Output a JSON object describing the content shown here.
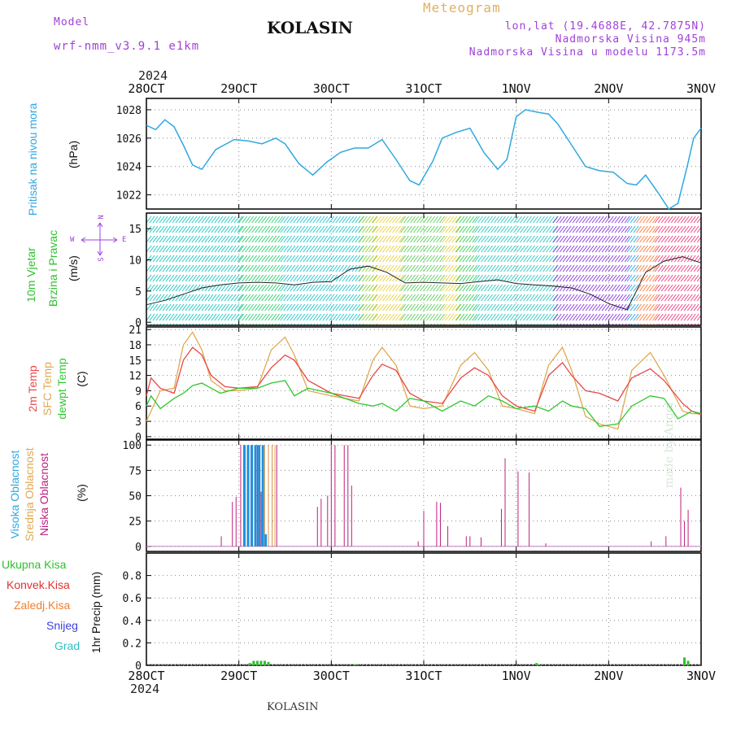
{
  "header": {
    "model_label": "Model",
    "model_value": "wrf-nmm_v3.9.1 e1km",
    "title": "KOLASIN",
    "meteogram_label": "Meteogram",
    "lonlat": "lon,lat (19.4688E, 42.7875N)",
    "elevation": "Nadmorska Visina 945m",
    "model_elevation": "Nadmorska Visina u modelu 1173.5m",
    "year_top": "2024",
    "year_bottom": "2024",
    "footer_station": "KOLASIN",
    "credit": "made by Angel"
  },
  "time_axis": {
    "days": [
      "28OCT",
      "29OCT",
      "30OCT",
      "31OCT",
      "1NOV",
      "2NOV",
      "3NOV"
    ]
  },
  "panels": {
    "pressure": {
      "ylabels": [
        "Pritisak na nivou mora",
        "(hPa)"
      ],
      "color": "#30a8e0"
    },
    "wind": {
      "ylabels": [
        "10m Vjetar",
        "Brzina i Pravac",
        "(m/s)"
      ],
      "compass": {
        "n": "N",
        "s": "S",
        "e": "E",
        "w": "W"
      }
    },
    "temp": {
      "ylabels": [
        "2m Temp",
        "SFC Temp",
        "dewpt Temp",
        "(C)"
      ],
      "colors": {
        "t2m": "#e84848",
        "sfc": "#e0a850",
        "dew": "#30c830"
      }
    },
    "cloud": {
      "ylabels": [
        "Visoka Oblacnost",
        "Srednja Oblacnost",
        "Niska Oblacnost",
        "(%)"
      ],
      "colors": {
        "high": "#2090e0",
        "mid": "#e0a850",
        "low": "#c02080"
      }
    },
    "precip": {
      "ylabel": "1hr Precip (mm)",
      "legend": [
        "Ukupna Kisa",
        "Konvek.Kisa",
        "Zaledj.Kisa",
        "Snijeg",
        "Grad"
      ],
      "legend_colors": [
        "#30c030",
        "#e03030",
        "#f08030",
        "#4040e0",
        "#30c0c0"
      ]
    }
  },
  "chart_data": [
    {
      "type": "line",
      "title": "",
      "ylabel": "Pritisak na nivou mora (hPa)",
      "ylim": [
        1021,
        1028.8
      ],
      "yticks": [
        1022,
        1024,
        1026,
        1028
      ],
      "x_unit": "days from 28OCT 00UTC",
      "grid": true,
      "series": [
        {
          "name": "",
          "x": [
            0,
            0.1,
            0.2,
            0.3,
            0.4,
            0.5,
            0.6,
            0.75,
            0.95,
            1.1,
            1.25,
            1.4,
            1.5,
            1.65,
            1.8,
            1.95,
            2.1,
            2.25,
            2.4,
            2.55,
            2.7,
            2.85,
            2.95,
            3.1,
            3.2,
            3.35,
            3.5,
            3.65,
            3.8,
            3.9,
            4.0,
            4.1,
            4.25,
            4.35,
            4.45,
            4.6,
            4.75,
            4.9,
            5.05,
            5.2,
            5.3,
            5.4,
            5.55,
            5.65,
            5.75,
            5.85,
            5.92,
            6.0
          ],
          "values": [
            1026.9,
            1026.6,
            1027.3,
            1026.8,
            1025.5,
            1024.1,
            1023.8,
            1025.2,
            1025.9,
            1025.8,
            1025.6,
            1026.0,
            1025.6,
            1024.2,
            1023.4,
            1024.3,
            1025.0,
            1025.3,
            1025.3,
            1025.9,
            1024.5,
            1023.0,
            1022.7,
            1024.4,
            1026.0,
            1026.4,
            1026.7,
            1025.0,
            1023.8,
            1024.5,
            1027.5,
            1028.0,
            1027.8,
            1027.7,
            1027.0,
            1025.5,
            1024.0,
            1023.7,
            1023.6,
            1022.8,
            1022.7,
            1023.4,
            1022.0,
            1021.0,
            1021.4,
            1024.0,
            1026.0,
            1026.7
          ]
        }
      ]
    },
    {
      "type": "line",
      "title": "",
      "ylabel": "10m Vjetar Brzina i Pravac (m/s)",
      "ylim": [
        -0.5,
        17.5
      ],
      "yticks": [
        0,
        5,
        10,
        15
      ],
      "grid": true,
      "series": [
        {
          "name": "",
          "x": [
            0,
            0.2,
            0.4,
            0.6,
            0.8,
            1.0,
            1.2,
            1.4,
            1.6,
            1.8,
            2.0,
            2.2,
            2.4,
            2.6,
            2.8,
            3.0,
            3.2,
            3.4,
            3.6,
            3.8,
            4.0,
            4.2,
            4.4,
            4.6,
            4.8,
            5.0,
            5.2,
            5.4,
            5.6,
            5.8,
            6.0
          ],
          "values": [
            2.8,
            3.5,
            4.5,
            5.5,
            6.0,
            6.3,
            6.4,
            6.3,
            6.0,
            6.4,
            6.5,
            8.5,
            9.0,
            8.0,
            6.3,
            6.4,
            6.3,
            6.2,
            6.5,
            6.8,
            6.2,
            6.0,
            5.8,
            5.5,
            4.5,
            3.0,
            2.0,
            8.0,
            9.8,
            10.5,
            9.5
          ]
        }
      ]
    },
    {
      "type": "line",
      "title": "",
      "ylabel": "Temp (C)",
      "ylim": [
        -0.5,
        21.5
      ],
      "yticks": [
        0,
        3,
        6,
        9,
        12,
        15,
        18,
        21
      ],
      "grid": true,
      "series": [
        {
          "name": "2m Temp",
          "x": [
            0,
            0.05,
            0.15,
            0.3,
            0.4,
            0.5,
            0.6,
            0.7,
            0.85,
            1.0,
            1.2,
            1.35,
            1.5,
            1.6,
            1.75,
            2.0,
            2.3,
            2.45,
            2.55,
            2.7,
            2.85,
            3.0,
            3.2,
            3.4,
            3.55,
            3.7,
            3.85,
            4.0,
            4.2,
            4.35,
            4.5,
            4.6,
            4.75,
            4.9,
            5.1,
            5.25,
            5.45,
            5.6,
            5.8,
            5.9,
            6.0
          ],
          "values": [
            8.0,
            11.5,
            9.5,
            8.5,
            15.0,
            17.5,
            16.0,
            12.0,
            9.8,
            9.5,
            9.8,
            13.5,
            16.0,
            15.0,
            11.0,
            8.5,
            7.5,
            12.0,
            14.2,
            13.0,
            8.5,
            7.0,
            6.5,
            11.5,
            13.5,
            12.0,
            8.0,
            6.0,
            5.0,
            12.0,
            14.5,
            12.0,
            9.0,
            8.5,
            7.0,
            11.5,
            13.3,
            11.0,
            6.5,
            5.0,
            4.3
          ]
        },
        {
          "name": "SFC Temp",
          "x": [
            0,
            0.05,
            0.15,
            0.3,
            0.4,
            0.5,
            0.6,
            0.7,
            0.85,
            1.0,
            1.2,
            1.35,
            1.5,
            1.6,
            1.75,
            2.0,
            2.3,
            2.45,
            2.55,
            2.7,
            2.85,
            3.0,
            3.2,
            3.4,
            3.55,
            3.7,
            3.85,
            4.0,
            4.2,
            4.35,
            4.5,
            4.6,
            4.75,
            4.9,
            5.1,
            5.25,
            5.45,
            5.6,
            5.8,
            5.9,
            6.0
          ],
          "values": [
            3.0,
            5.0,
            9.0,
            9.5,
            18.0,
            20.5,
            17.0,
            11.0,
            9.0,
            9.0,
            9.5,
            17.0,
            19.5,
            16.0,
            9.0,
            8.0,
            7.0,
            15.0,
            17.5,
            14.0,
            6.0,
            5.5,
            6.0,
            14.0,
            16.5,
            13.0,
            6.0,
            5.5,
            4.5,
            14.0,
            17.5,
            13.0,
            4.0,
            2.5,
            1.5,
            13.0,
            16.5,
            12.0,
            5.0,
            4.5,
            4.5
          ]
        },
        {
          "name": "dewpt Temp",
          "x": [
            0,
            0.05,
            0.15,
            0.3,
            0.4,
            0.5,
            0.6,
            0.8,
            1.0,
            1.2,
            1.35,
            1.5,
            1.6,
            1.75,
            2.0,
            2.3,
            2.45,
            2.55,
            2.7,
            2.85,
            3.0,
            3.2,
            3.4,
            3.55,
            3.7,
            3.85,
            4.0,
            4.2,
            4.35,
            4.5,
            4.6,
            4.75,
            4.9,
            5.1,
            5.25,
            5.45,
            5.6,
            5.75,
            5.9,
            6.0
          ],
          "values": [
            6.0,
            8.0,
            5.5,
            7.5,
            8.5,
            10.0,
            10.5,
            8.5,
            9.5,
            9.5,
            10.5,
            11.0,
            8.0,
            9.5,
            8.5,
            6.5,
            6.0,
            6.5,
            5.0,
            7.5,
            7.0,
            5.0,
            7.0,
            6.0,
            8.0,
            7.0,
            5.5,
            6.0,
            5.0,
            7.0,
            6.0,
            5.5,
            2.0,
            2.5,
            6.0,
            8.0,
            7.5,
            3.5,
            5.0,
            4.5
          ]
        }
      ]
    },
    {
      "type": "bar",
      "title": "",
      "ylabel": "Oblacnost (%)",
      "ylim": [
        -5,
        105
      ],
      "yticks": [
        0,
        25,
        50,
        75,
        100
      ],
      "grid": true,
      "series": [
        {
          "name": "Niska Oblacnost",
          "x": [
            0.81,
            0.93,
            0.97,
            1.02,
            1.06,
            1.1,
            1.14,
            1.2,
            1.24,
            1.28,
            1.32,
            1.36,
            1.41,
            1.85,
            1.89,
            1.96,
            2.0,
            2.04,
            2.14,
            2.18,
            2.22,
            2.94,
            3.0,
            3.14,
            3.18,
            3.26,
            3.46,
            3.5,
            3.62,
            3.84,
            3.88,
            4.02,
            4.14,
            4.32,
            5.46,
            5.62,
            5.78,
            5.82,
            5.86
          ],
          "values": [
            10,
            44,
            49,
            100,
            100,
            100,
            100,
            100,
            54,
            100,
            100,
            100,
            100,
            39,
            47,
            50,
            100,
            100,
            100,
            100,
            60,
            5,
            35,
            44,
            43,
            20,
            10,
            10,
            9,
            37,
            87,
            74,
            73,
            3,
            5,
            10,
            58,
            25,
            36
          ]
        },
        {
          "name": "Srednja Oblacnost",
          "x": [
            1.05,
            1.09,
            1.13,
            1.17,
            1.21,
            1.25,
            1.28,
            1.32,
            1.36,
            1.39
          ],
          "values": [
            100,
            100,
            100,
            100,
            100,
            54,
            100,
            100,
            100,
            100
          ]
        },
        {
          "name": "Visoka Oblacnost",
          "x": [
            1.06,
            1.1,
            1.14,
            1.18,
            1.22,
            1.26,
            1.29
          ],
          "values": [
            100,
            100,
            100,
            100,
            100,
            100,
            12
          ]
        }
      ]
    },
    {
      "type": "bar",
      "title": "",
      "ylabel": "1hr Precip (mm)",
      "ylim": [
        0,
        1.0
      ],
      "yticks": [
        0,
        0.2,
        0.4,
        0.6,
        0.8
      ],
      "grid": true,
      "series": [
        {
          "name": "Ukupna Kisa",
          "x": [
            1.12,
            1.16,
            1.2,
            1.24,
            1.28,
            1.32,
            2.26,
            4.22,
            4.24,
            5.82,
            5.86
          ],
          "values": [
            0.02,
            0.04,
            0.04,
            0.04,
            0.04,
            0.03,
            0.01,
            0.02,
            0.01,
            0.07,
            0.04
          ]
        }
      ]
    }
  ]
}
